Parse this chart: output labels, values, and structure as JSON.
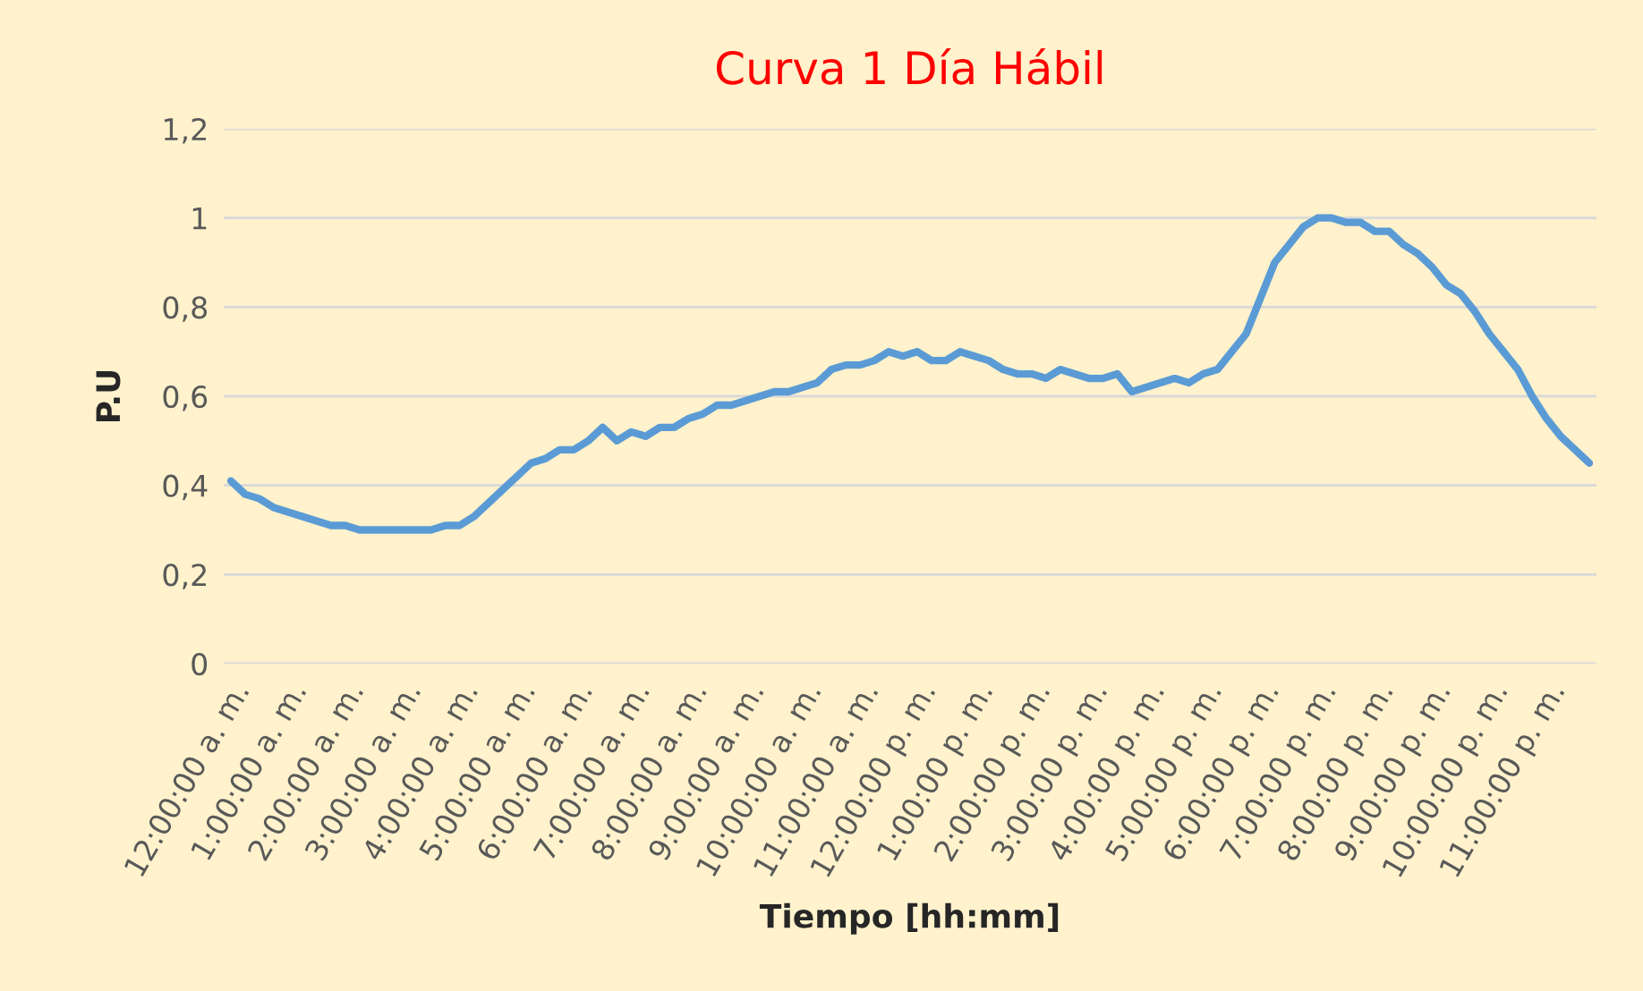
{
  "chart_data": {
    "type": "line",
    "title": "Curva 1 Día Hábil",
    "xlabel": "Tiempo [hh:mm]",
    "ylabel": "P.U",
    "categories": [
      "12:00:00 a. m.",
      null,
      null,
      null,
      "1:00:00 a. m.",
      null,
      null,
      null,
      "2:00:00 a. m.",
      null,
      null,
      null,
      "3:00:00 a. m.",
      null,
      null,
      null,
      "4:00:00 a. m.",
      null,
      null,
      null,
      "5:00:00 a. m.",
      null,
      null,
      null,
      "6:00:00 a. m.",
      null,
      null,
      null,
      "7:00:00 a. m.",
      null,
      null,
      null,
      "8:00:00 a. m.",
      null,
      null,
      null,
      "9:00:00 a. m.",
      null,
      null,
      null,
      "10:00:00 a. m.",
      null,
      null,
      null,
      "11:00:00 a. m.",
      null,
      null,
      null,
      "12:00:00 p. m.",
      null,
      null,
      null,
      "1:00:00 p. m.",
      null,
      null,
      null,
      "2:00:00 p. m.",
      null,
      null,
      null,
      "3:00:00 p. m.",
      null,
      null,
      null,
      "4:00:00 p. m.",
      null,
      null,
      null,
      "5:00:00 p. m.",
      null,
      null,
      null,
      "6:00:00 p. m.",
      null,
      null,
      null,
      "7:00:00 p. m.",
      null,
      null,
      null,
      "8:00:00 p. m.",
      null,
      null,
      null,
      "9:00:00 p. m.",
      null,
      null,
      null,
      "10:00:00 p. m.",
      null,
      null,
      null,
      "11:00:00 p. m.",
      null,
      null,
      null
    ],
    "series": [
      {
        "color": "#5b9bd5",
        "values": [
          0.41,
          0.38,
          0.37,
          0.35,
          0.34,
          0.33,
          0.32,
          0.31,
          0.31,
          0.3,
          0.3,
          0.3,
          0.3,
          0.3,
          0.3,
          0.31,
          0.31,
          0.33,
          0.36,
          0.39,
          0.42,
          0.45,
          0.46,
          0.48,
          0.48,
          0.5,
          0.53,
          0.5,
          0.52,
          0.51,
          0.53,
          0.53,
          0.55,
          0.56,
          0.58,
          0.58,
          0.59,
          0.6,
          0.61,
          0.61,
          0.62,
          0.63,
          0.66,
          0.67,
          0.67,
          0.68,
          0.7,
          0.69,
          0.7,
          0.68,
          0.68,
          0.7,
          0.69,
          0.68,
          0.66,
          0.65,
          0.65,
          0.64,
          0.66,
          0.65,
          0.64,
          0.64,
          0.65,
          0.61,
          0.62,
          0.63,
          0.64,
          0.63,
          0.65,
          0.66,
          0.7,
          0.74,
          0.82,
          0.9,
          0.94,
          0.98,
          1.0,
          1.0,
          0.99,
          0.99,
          0.97,
          0.97,
          0.94,
          0.92,
          0.89,
          0.85,
          0.83,
          0.79,
          0.74,
          0.7,
          0.66,
          0.6,
          0.55,
          0.51,
          0.48,
          0.45
        ]
      }
    ],
    "ylim": [
      0,
      1.2
    ],
    "yticks": [
      0,
      {
        "value": 0.2,
        "label": "0,2"
      },
      {
        "value": 0.4,
        "label": "0,4"
      },
      {
        "value": 0.6,
        "label": "0,6"
      },
      {
        "value": 0.8,
        "label": "0,8"
      },
      1,
      {
        "value": 1.2,
        "label": "1,2"
      }
    ],
    "grid": "y",
    "marker": "none",
    "line_style": "solid",
    "legend": false
  }
}
